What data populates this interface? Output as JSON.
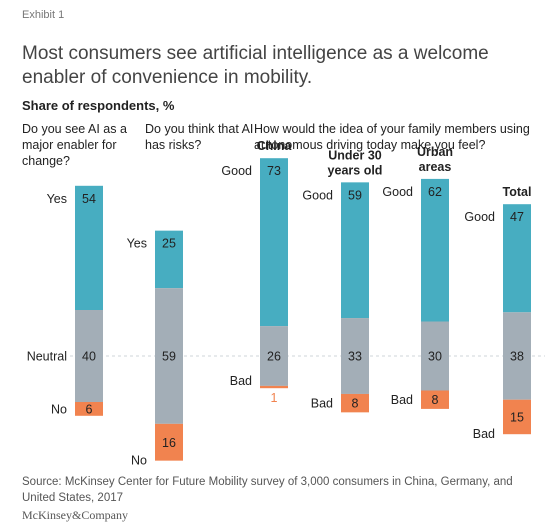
{
  "exhibit_label": "Exhibit 1",
  "title": "Most consumers see artificial intelligence as a welcome enabler of convenience in mobility.",
  "subtitle": "Share of respondents, %",
  "questions": {
    "q1": "Do you see AI as a major enabler for change?",
    "q2": "Do you think that AI has risks?",
    "q3": "How would the idea of your family members using autonomous driving today make you feel?"
  },
  "colors": {
    "positive": "#47adc1",
    "neutral": "#a3aeb7",
    "negative": "#f1834f",
    "reference_line": "#cfd4d8"
  },
  "chart_data": {
    "type": "bar",
    "stacked": true,
    "categories": [
      "Do you see AI as a major enabler for change?",
      "Do you think that AI has risks?",
      "China",
      "Under 30 years old",
      "Urban areas",
      "Total"
    ],
    "bars": [
      {
        "title": "",
        "segments": [
          {
            "label": "Yes",
            "value": 54,
            "kind": "positive"
          },
          {
            "label": "Neutral",
            "value": 40,
            "kind": "neutral"
          },
          {
            "label": "No",
            "value": 6,
            "kind": "negative"
          }
        ]
      },
      {
        "title": "",
        "segments": [
          {
            "label": "Yes",
            "value": 25,
            "kind": "positive"
          },
          {
            "label": "",
            "value": 59,
            "kind": "neutral"
          },
          {
            "label": "No",
            "value": 16,
            "kind": "negative"
          }
        ]
      },
      {
        "title": "China",
        "segments": [
          {
            "label": "Good",
            "value": 73,
            "kind": "positive"
          },
          {
            "label": "",
            "value": 26,
            "kind": "neutral"
          },
          {
            "label": "Bad",
            "value": 1,
            "kind": "negative"
          }
        ]
      },
      {
        "title": "Under 30 years old",
        "segments": [
          {
            "label": "Good",
            "value": 59,
            "kind": "positive"
          },
          {
            "label": "",
            "value": 33,
            "kind": "neutral"
          },
          {
            "label": "Bad",
            "value": 8,
            "kind": "negative"
          }
        ]
      },
      {
        "title": "Urban areas",
        "segments": [
          {
            "label": "Good",
            "value": 62,
            "kind": "positive"
          },
          {
            "label": "",
            "value": 30,
            "kind": "neutral"
          },
          {
            "label": "Bad",
            "value": 8,
            "kind": "negative"
          }
        ]
      },
      {
        "title": "Total",
        "segments": [
          {
            "label": "Good",
            "value": 47,
            "kind": "positive"
          },
          {
            "label": "",
            "value": 38,
            "kind": "neutral"
          },
          {
            "label": "Bad",
            "value": 15,
            "kind": "negative"
          }
        ]
      }
    ]
  },
  "source": "Source: McKinsey Center for Future Mobility survey of 3,000 consumers in China, Germany, and United States, 2017",
  "brand": "McKinsey&Company"
}
